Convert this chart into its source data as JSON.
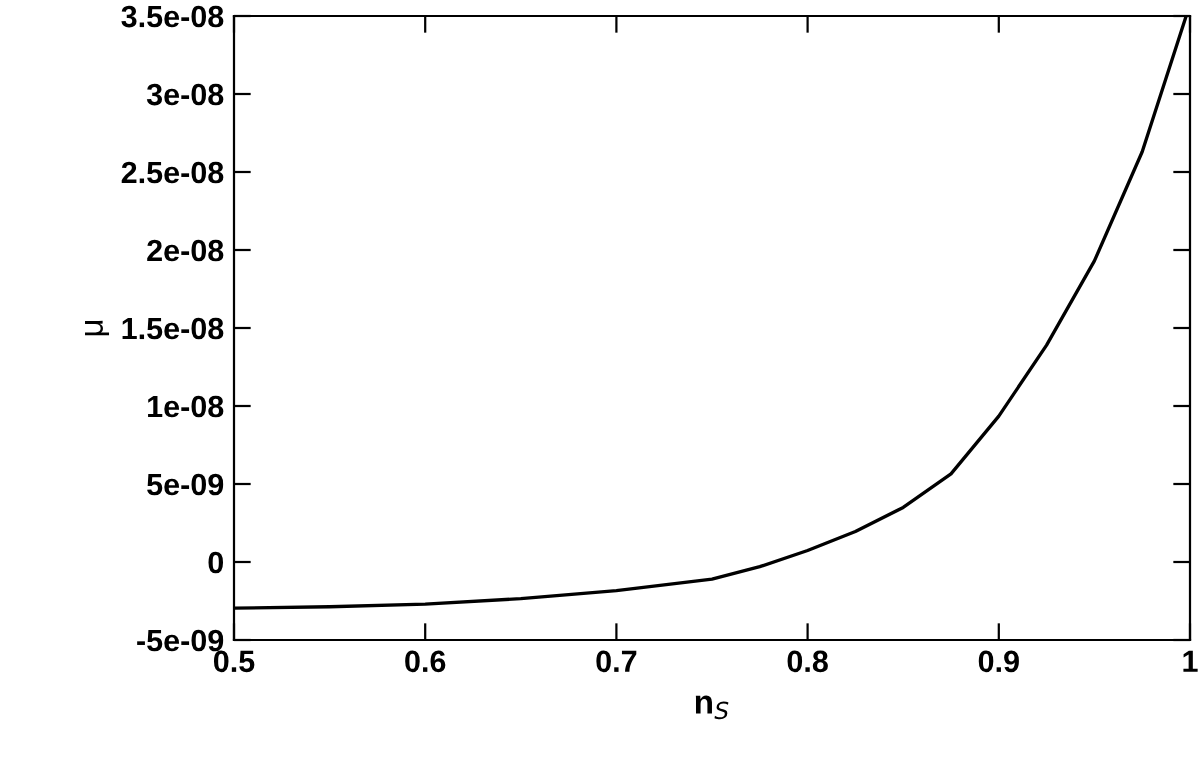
{
  "chart_data": {
    "type": "line",
    "xlabel": "n$_{S}$",
    "ylabel": "μ",
    "series": [
      {
        "color": "#000000",
        "x": [
          0.5,
          0.55,
          0.6,
          0.65,
          0.7,
          0.75,
          0.775,
          0.8,
          0.825,
          0.85,
          0.875,
          0.9,
          0.925,
          0.95,
          0.975,
          0.998
        ],
        "values": [
          -2.96e-09,
          -2.87e-09,
          -2.7e-09,
          -2.35e-09,
          -1.83e-09,
          -1.1e-09,
          -3e-10,
          7.4e-10,
          1.96e-09,
          3.5e-09,
          5.65e-09,
          9.35e-09,
          1.39e-08,
          1.93e-08,
          2.63e-08,
          3.5e-08
        ]
      }
    ],
    "xlim": [
      0.5,
      1
    ],
    "xticks": [
      0.5,
      0.6,
      0.7,
      0.8,
      0.9,
      1
    ],
    "ylim": [
      -5e-09,
      3.5e-08
    ],
    "yticks": [
      {
        "value": -5e-09,
        "label": "-5e-09"
      },
      {
        "value": 0,
        "label": "0"
      },
      {
        "value": 5e-09,
        "label": "5e-09"
      },
      {
        "value": 1e-08,
        "label": "1e-08"
      },
      {
        "value": 1.5e-08,
        "label": "1.5e-08"
      },
      {
        "value": 2e-08,
        "label": "2e-08"
      },
      {
        "value": 2.5e-08,
        "label": "2.5e-08"
      },
      {
        "value": 3e-08,
        "label": "3e-08"
      },
      {
        "value": 3.5e-08,
        "label": "3.5e-08"
      }
    ],
    "grid": false,
    "legend": false,
    "marker": "none",
    "line_style": "solid"
  }
}
